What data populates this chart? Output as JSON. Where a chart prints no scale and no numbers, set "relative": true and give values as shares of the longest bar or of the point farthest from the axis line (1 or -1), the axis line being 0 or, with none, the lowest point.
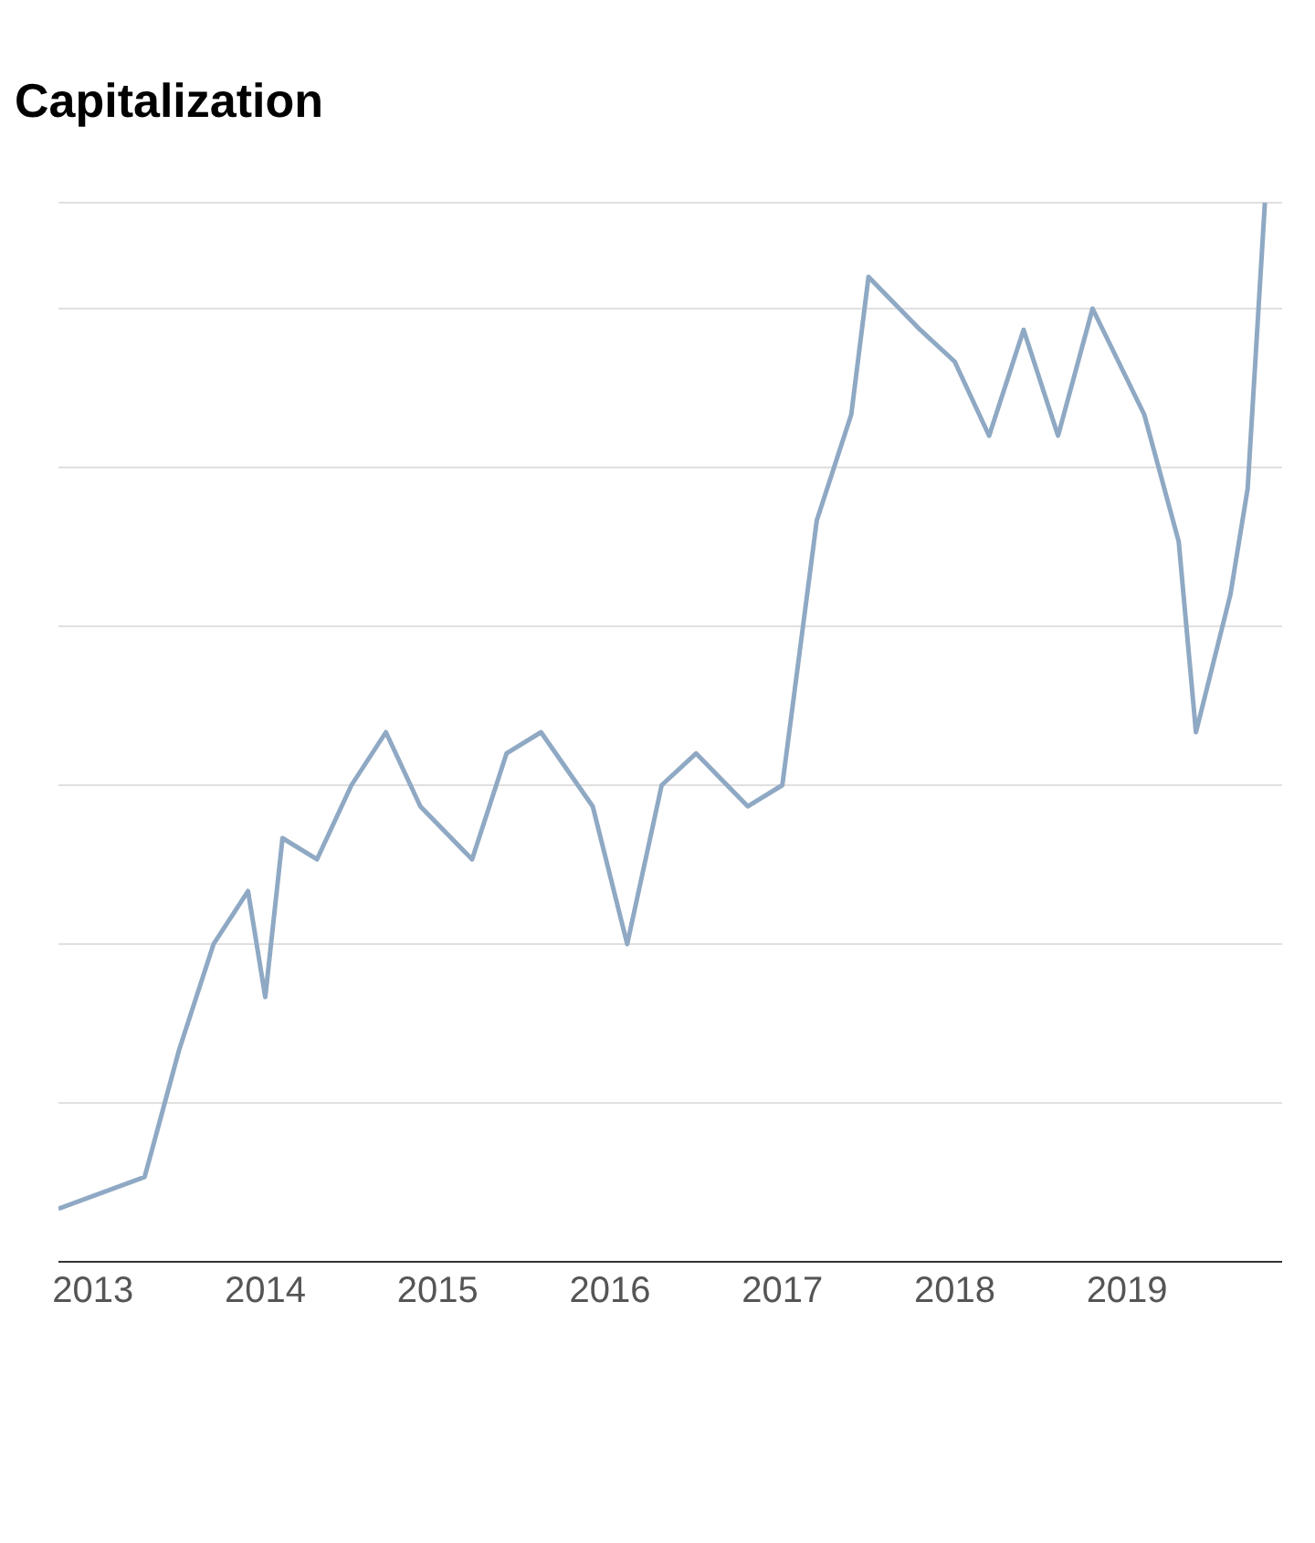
{
  "chart_data": {
    "type": "line",
    "title": "Capitalization",
    "relative": true,
    "grid": "y",
    "tick_labels": "x",
    "xlim": [
      2012.8,
      2019.9
    ],
    "xticks": [
      2013,
      2014,
      2015,
      2016,
      2017,
      2018,
      2019
    ],
    "x": [
      2012.8,
      2013.3,
      2013.5,
      2013.7,
      2013.9,
      2014.0,
      2014.1,
      2014.3,
      2014.5,
      2014.7,
      2014.9,
      2015.2,
      2015.4,
      2015.6,
      2015.9,
      2016.1,
      2016.3,
      2016.5,
      2016.8,
      2017.0,
      2017.2,
      2017.4,
      2017.5,
      2017.8,
      2018.0,
      2018.2,
      2018.4,
      2018.6,
      2018.8,
      2019.1,
      2019.3,
      2019.4,
      2019.6,
      2019.7,
      2019.8
    ],
    "series": [
      {
        "color": "#8fa9c4",
        "values": [
          0.05,
          0.08,
          0.2,
          0.3,
          0.35,
          0.25,
          0.4,
          0.38,
          0.45,
          0.5,
          0.43,
          0.38,
          0.48,
          0.5,
          0.43,
          0.3,
          0.45,
          0.48,
          0.43,
          0.45,
          0.7,
          0.8,
          0.93,
          0.88,
          0.85,
          0.78,
          0.88,
          0.78,
          0.9,
          0.8,
          0.68,
          0.5,
          0.63,
          0.73,
          1
        ]
      }
    ]
  }
}
